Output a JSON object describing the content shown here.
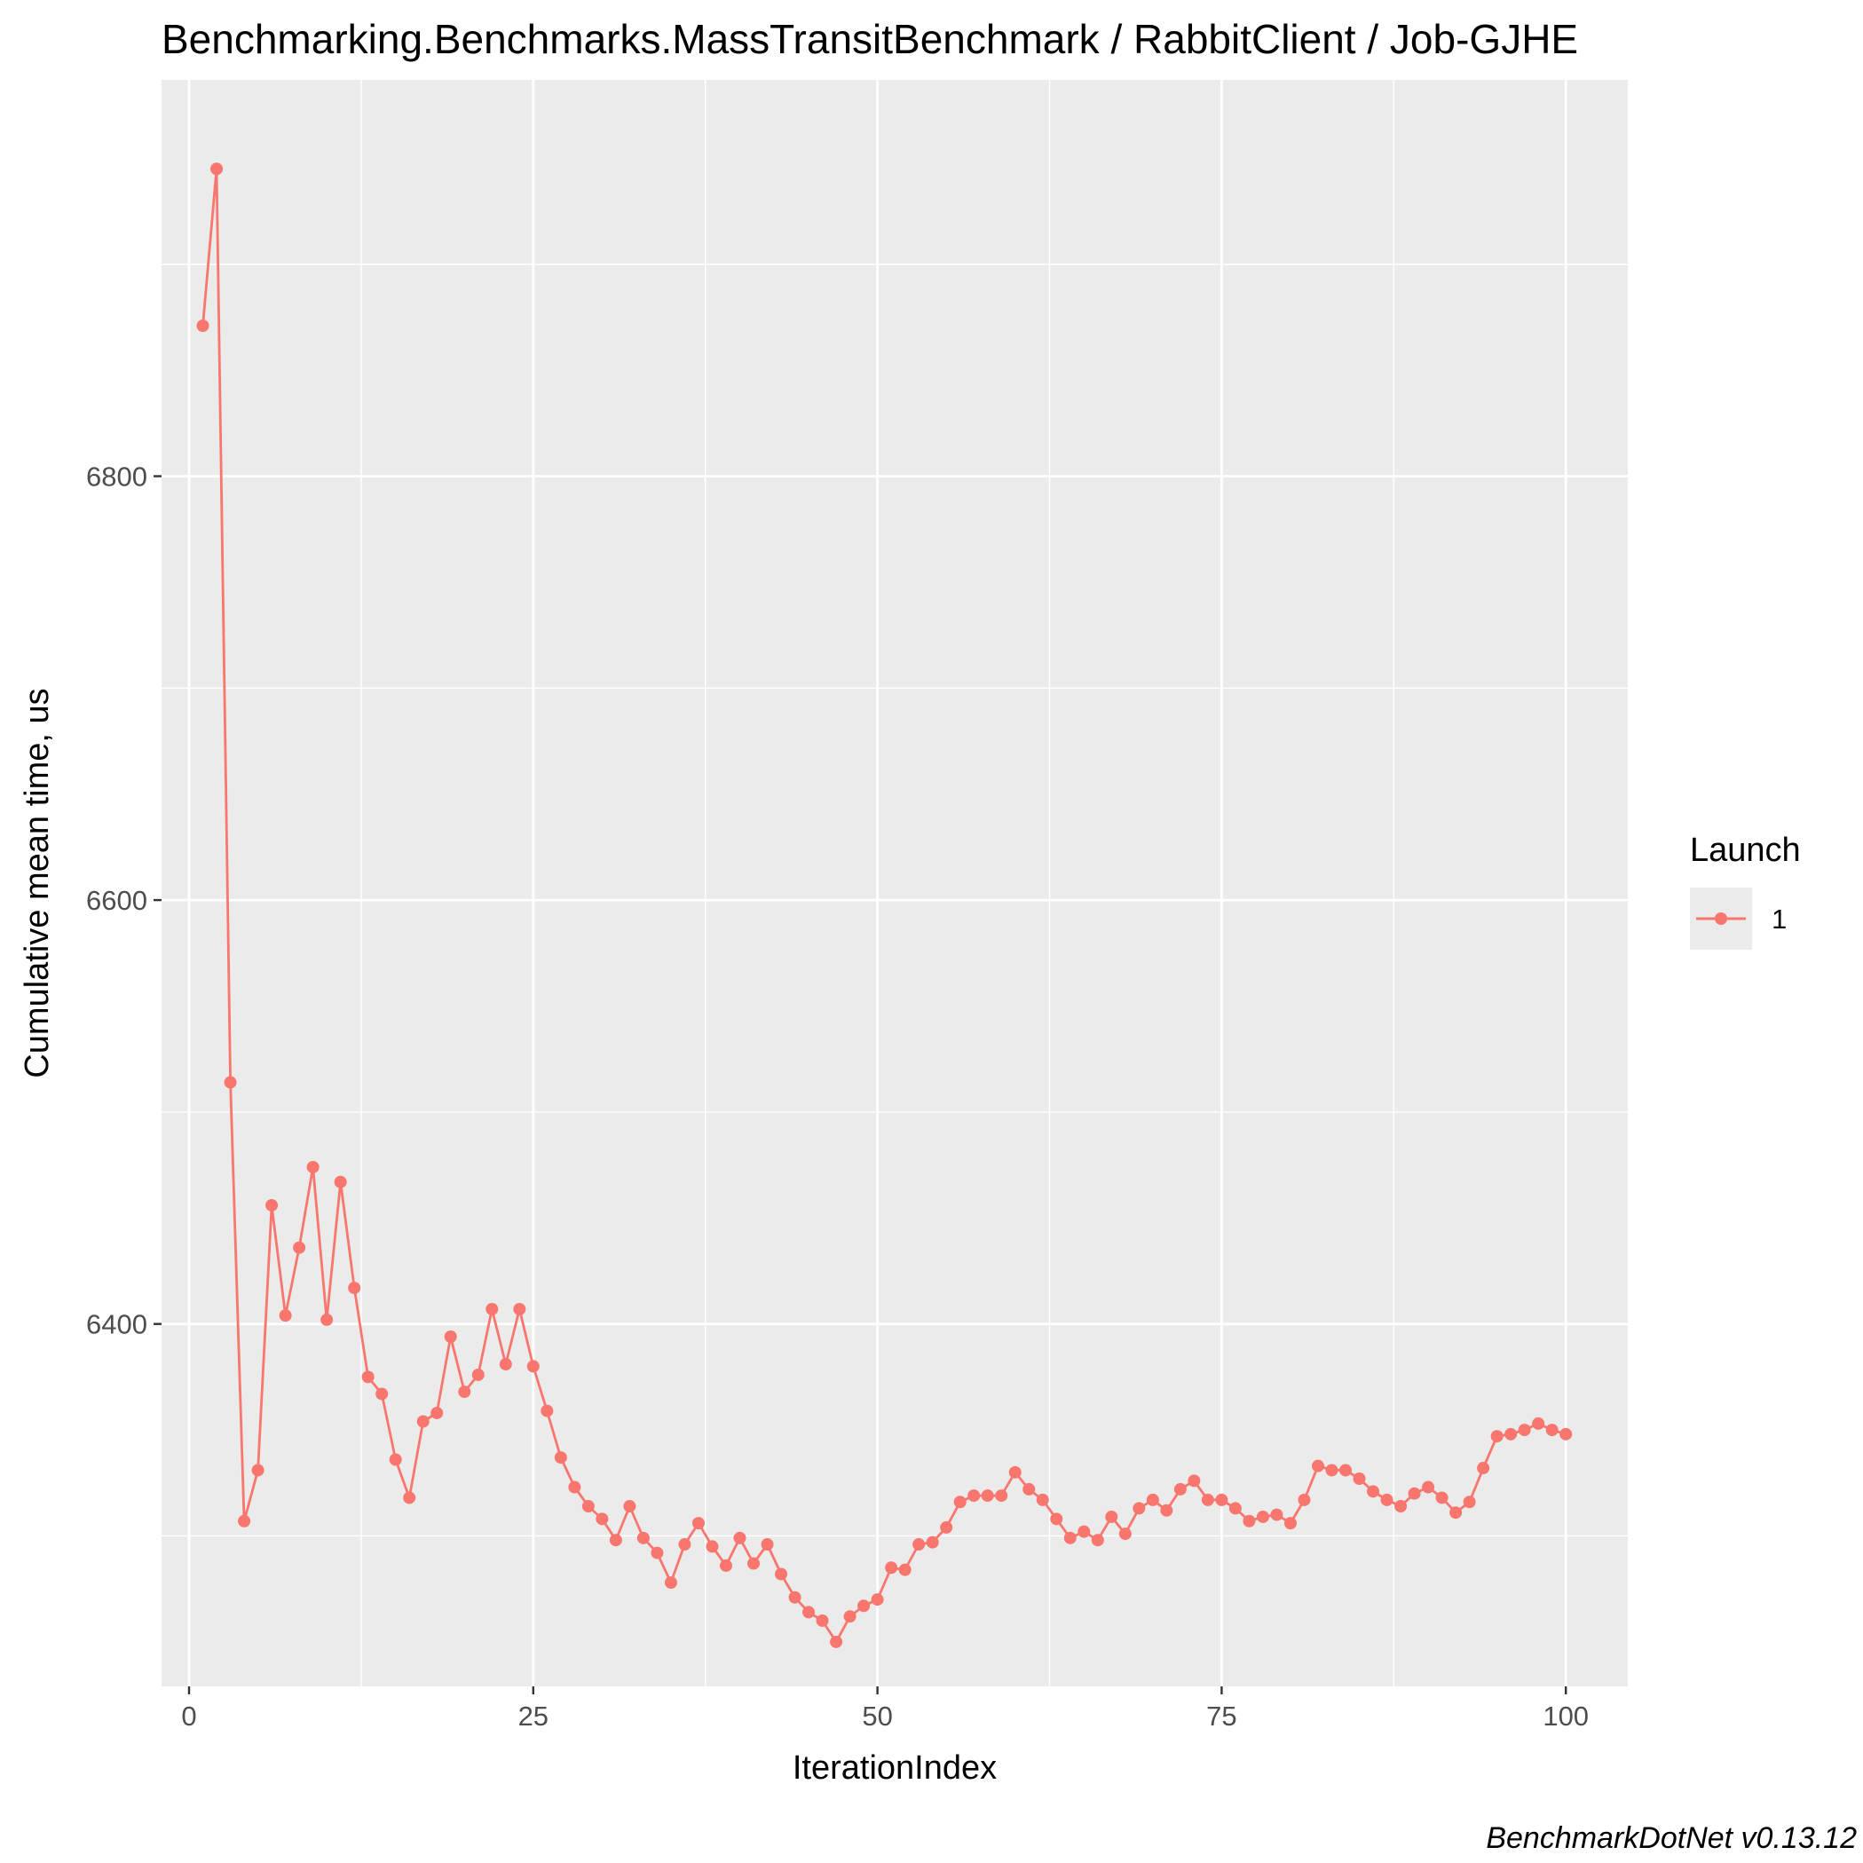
{
  "chart_data": {
    "type": "line",
    "title": "Benchmarking.Benchmarks.MassTransitBenchmark / RabbitClient / Job-GJHE",
    "xlabel": "IterationIndex",
    "ylabel": "Cumulative mean time, us",
    "caption": "BenchmarkDotNet v0.13.12",
    "xlim": [
      -2,
      104.5
    ],
    "ylim": [
      6229,
      6987
    ],
    "x_ticks": [
      0,
      25,
      50,
      75,
      100
    ],
    "x_tick_labels": [
      "0",
      "25",
      "50",
      "75",
      "100"
    ],
    "y_ticks": [
      6400,
      6600,
      6800
    ],
    "y_tick_labels": [
      "6400",
      "6600",
      "6800"
    ],
    "x_minor_ticks": [
      12.5,
      37.5,
      62.5,
      87.5
    ],
    "y_minor_ticks": [
      6300,
      6500,
      6700,
      6900
    ],
    "grid": true,
    "legend": {
      "title": "Launch",
      "position": "right",
      "entries": [
        "1"
      ]
    },
    "series": [
      {
        "name": "1",
        "color": "#F8766D",
        "x": [
          1,
          2,
          3,
          4,
          5,
          6,
          7,
          8,
          9,
          10,
          11,
          12,
          13,
          14,
          15,
          16,
          17,
          18,
          19,
          20,
          21,
          22,
          23,
          24,
          25,
          26,
          27,
          28,
          29,
          30,
          31,
          32,
          33,
          34,
          35,
          36,
          37,
          38,
          39,
          40,
          41,
          42,
          43,
          44,
          45,
          46,
          47,
          48,
          49,
          50,
          51,
          52,
          53,
          54,
          55,
          56,
          57,
          58,
          59,
          60,
          61,
          62,
          63,
          64,
          65,
          66,
          67,
          68,
          69,
          70,
          71,
          72,
          73,
          74,
          75,
          76,
          77,
          78,
          79,
          80,
          81,
          82,
          83,
          84,
          85,
          86,
          87,
          88,
          89,
          90,
          91,
          92,
          93,
          94,
          95,
          96,
          97,
          98,
          99,
          100
        ],
        "y": [
          6871,
          6945,
          6514,
          6307,
          6331,
          6456,
          6404,
          6436,
          6474,
          6402,
          6467,
          6417,
          6375,
          6367,
          6336,
          6318,
          6354,
          6358,
          6394,
          6368,
          6376,
          6407,
          6381,
          6407,
          6380,
          6359,
          6337,
          6323,
          6314,
          6308,
          6298,
          6314,
          6299,
          6292,
          6278,
          6296,
          6306,
          6295,
          6286,
          6299,
          6287,
          6296,
          6282,
          6271,
          6264,
          6260,
          6250,
          6262,
          6267,
          6270,
          6285,
          6284,
          6296,
          6297,
          6304,
          6316,
          6319,
          6319,
          6319,
          6330,
          6322,
          6317,
          6308,
          6299,
          6302,
          6298,
          6309,
          6301,
          6313,
          6317,
          6312,
          6322,
          6326,
          6317,
          6317,
          6313,
          6307,
          6309,
          6310,
          6306,
          6317,
          6333,
          6331,
          6331,
          6327,
          6321,
          6317,
          6314,
          6320,
          6323,
          6318,
          6311,
          6316,
          6332,
          6347,
          6348,
          6350,
          6353,
          6350,
          6348
        ]
      }
    ]
  }
}
